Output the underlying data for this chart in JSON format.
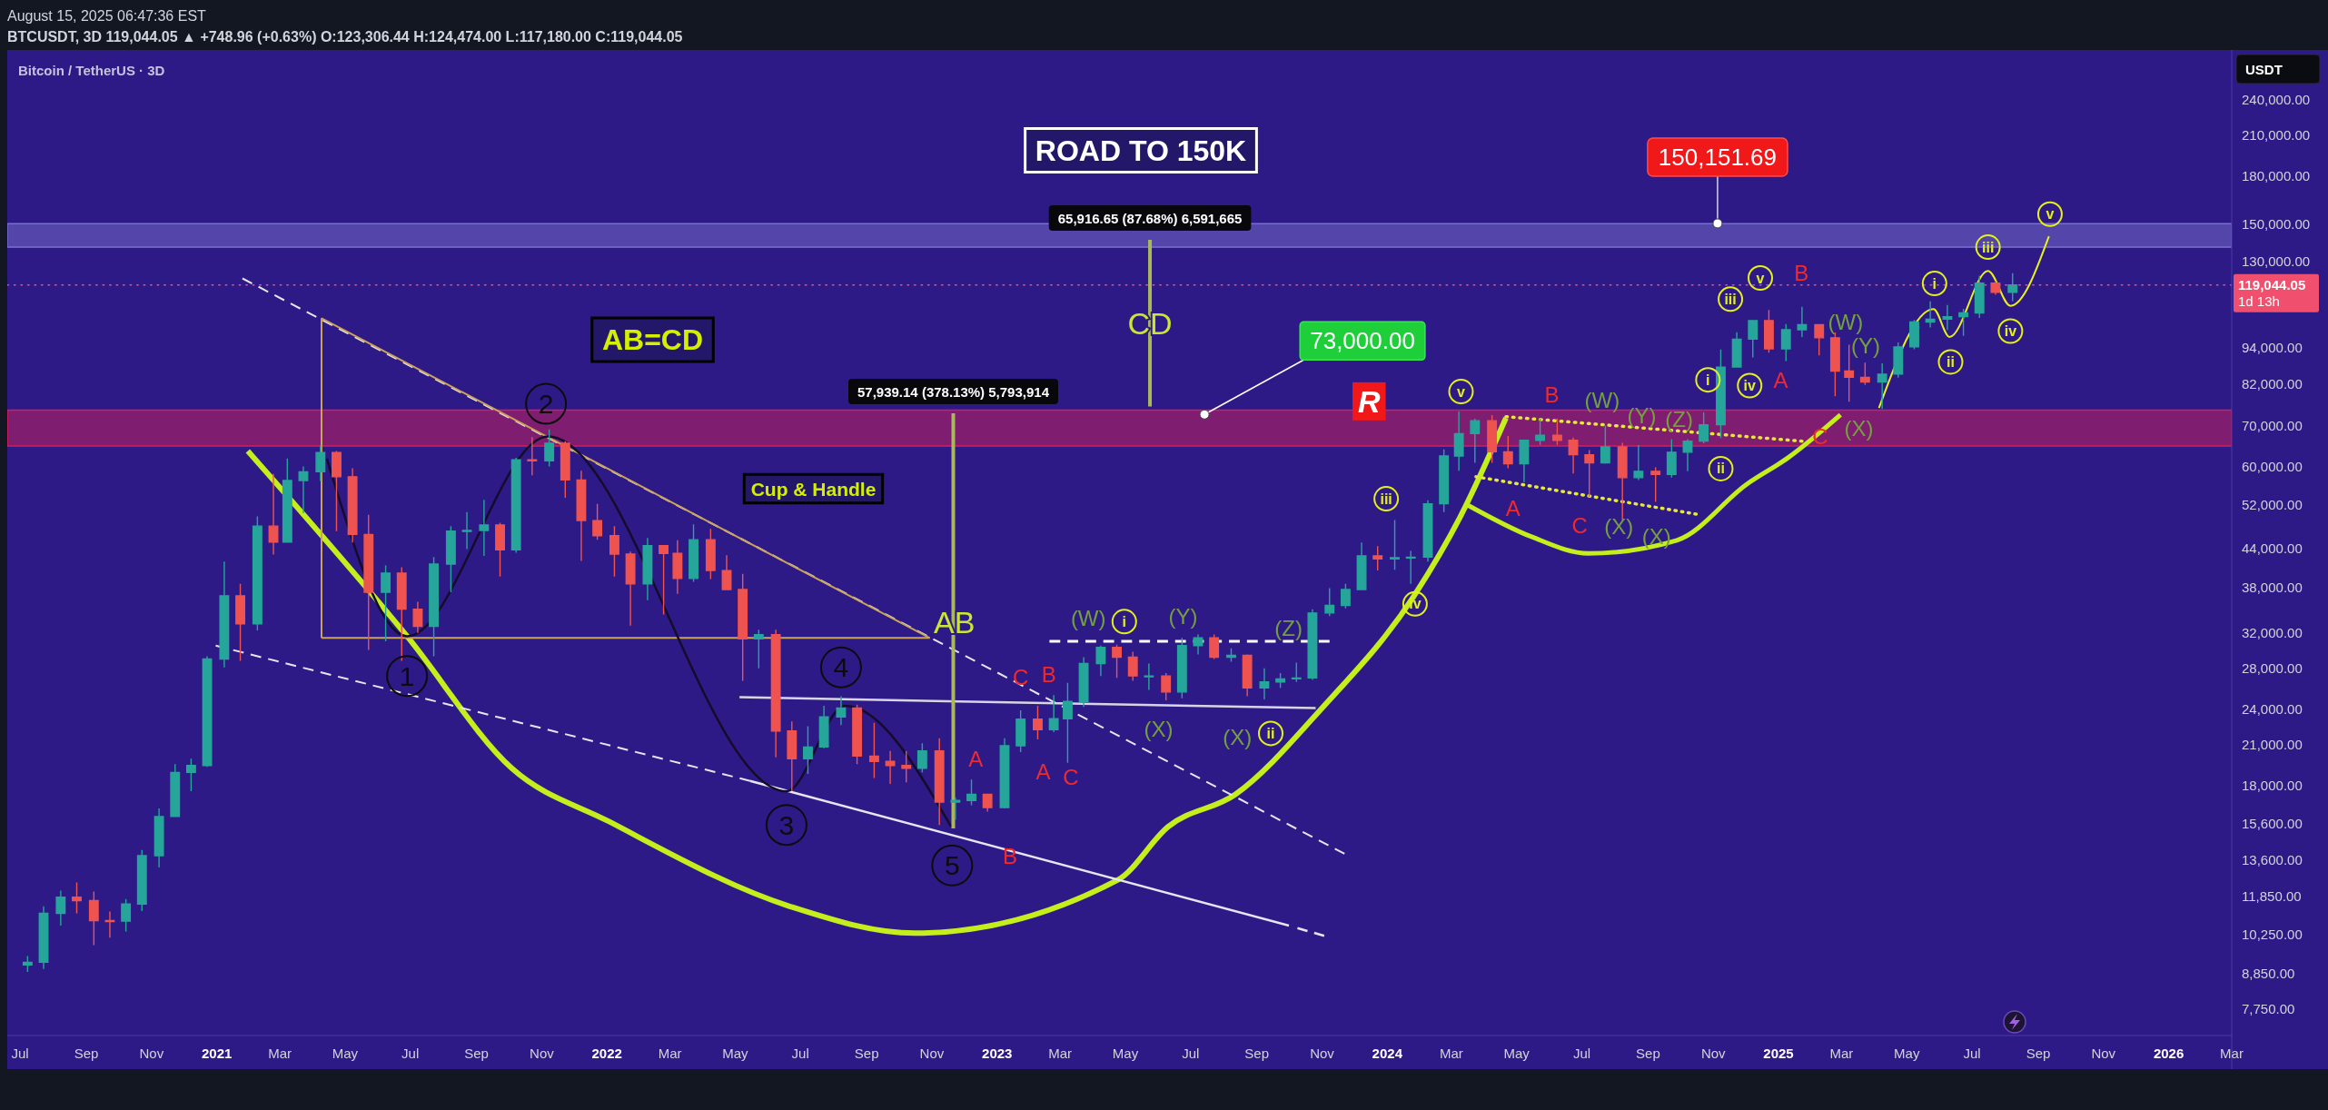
{
  "chart_data": {
    "type": "candlestick",
    "title": "Bitcoin / TetherUS · 3D",
    "ylabel": "USDT",
    "log": true,
    "xlim": [
      "2020-06-19",
      "2026-03-01"
    ],
    "ylim": [
      7000,
      289000
    ],
    "xticks": [
      {
        "value": "2020-07",
        "label": "Jul"
      },
      {
        "value": "2020-09",
        "label": "Sep"
      },
      {
        "value": "2020-11",
        "label": "Nov"
      },
      {
        "value": "2021-01",
        "label": "2021"
      },
      {
        "value": "2021-03",
        "label": "Mar"
      },
      {
        "value": "2021-05",
        "label": "May"
      },
      {
        "value": "2021-07",
        "label": "Jul"
      },
      {
        "value": "2021-09",
        "label": "Sep"
      },
      {
        "value": "2021-11",
        "label": "Nov"
      },
      {
        "value": "2022-01",
        "label": "2022"
      },
      {
        "value": "2022-03",
        "label": "Mar"
      },
      {
        "value": "2022-05",
        "label": "May"
      },
      {
        "value": "2022-07",
        "label": "Jul"
      },
      {
        "value": "2022-09",
        "label": "Sep"
      },
      {
        "value": "2022-11",
        "label": "Nov"
      },
      {
        "value": "2023-01",
        "label": "2023"
      },
      {
        "value": "2023-03",
        "label": "Mar"
      },
      {
        "value": "2023-05",
        "label": "May"
      },
      {
        "value": "2023-07",
        "label": "Jul"
      },
      {
        "value": "2023-09",
        "label": "Sep"
      },
      {
        "value": "2023-11",
        "label": "Nov"
      },
      {
        "value": "2024-01",
        "label": "2024"
      },
      {
        "value": "2024-03",
        "label": "Mar"
      },
      {
        "value": "2024-05",
        "label": "May"
      },
      {
        "value": "2024-07",
        "label": "Jul"
      },
      {
        "value": "2024-09",
        "label": "Sep"
      },
      {
        "value": "2024-11",
        "label": "Nov"
      },
      {
        "value": "2025-01",
        "label": "2025"
      },
      {
        "value": "2025-03",
        "label": "Mar"
      },
      {
        "value": "2025-05",
        "label": "May"
      },
      {
        "value": "2025-07",
        "label": "Jul"
      },
      {
        "value": "2025-09",
        "label": "Sep"
      },
      {
        "value": "2025-11",
        "label": "Nov"
      },
      {
        "value": "2026-01",
        "label": "2026"
      },
      {
        "value": "2026-03",
        "label": "Mar"
      }
    ],
    "yticks": [
      {
        "value": 240000,
        "label": "240,000.00"
      },
      {
        "value": 210000,
        "label": "210,000.00"
      },
      {
        "value": 180000,
        "label": "180,000.00"
      },
      {
        "value": 150000,
        "label": "150,000.00"
      },
      {
        "value": 130000,
        "label": "130,000.00"
      },
      {
        "value": 94000,
        "label": "94,000.00"
      },
      {
        "value": 82000,
        "label": "82,000.00"
      },
      {
        "value": 70000,
        "label": "70,000.00"
      },
      {
        "value": 60000,
        "label": "60,000.00"
      },
      {
        "value": 52000,
        "label": "52,000.00"
      },
      {
        "value": 44000,
        "label": "44,000.00"
      },
      {
        "value": 38000,
        "label": "38,000.00"
      },
      {
        "value": 32000,
        "label": "32,000.00"
      },
      {
        "value": 28000,
        "label": "28,000.00"
      },
      {
        "value": 24000,
        "label": "24,000.00"
      },
      {
        "value": 21000,
        "label": "21,000.00"
      },
      {
        "value": 18000,
        "label": "18,000.00"
      },
      {
        "value": 15600,
        "label": "15,600.00"
      },
      {
        "value": 13600,
        "label": "13,600.00"
      },
      {
        "value": 11850,
        "label": "11,850.00"
      },
      {
        "value": 10250,
        "label": "10,250.00"
      },
      {
        "value": 8850,
        "label": "8,850.00"
      },
      {
        "value": 7750,
        "label": "7,750.00"
      }
    ],
    "x": [
      "2020-07-08",
      "2020-07-23",
      "2020-08-08",
      "2020-08-23",
      "2020-09-08",
      "2020-09-23",
      "2020-10-08",
      "2020-10-23",
      "2020-11-08",
      "2020-11-23",
      "2020-12-08",
      "2020-12-23",
      "2021-01-08",
      "2021-01-23",
      "2021-02-08",
      "2021-02-23",
      "2021-03-08",
      "2021-03-23",
      "2021-04-08",
      "2021-04-23",
      "2021-05-08",
      "2021-05-23",
      "2021-06-08",
      "2021-06-23",
      "2021-07-08",
      "2021-07-23",
      "2021-08-08",
      "2021-08-23",
      "2021-09-08",
      "2021-09-23",
      "2021-10-08",
      "2021-10-23",
      "2021-11-08",
      "2021-11-23",
      "2021-12-08",
      "2021-12-23",
      "2022-01-08",
      "2022-01-23",
      "2022-02-08",
      "2022-02-23",
      "2022-03-08",
      "2022-03-23",
      "2022-04-08",
      "2022-04-23",
      "2022-05-08",
      "2022-05-23",
      "2022-06-08",
      "2022-06-23",
      "2022-07-08",
      "2022-07-23",
      "2022-08-08",
      "2022-08-23",
      "2022-09-08",
      "2022-09-23",
      "2022-10-08",
      "2022-10-23",
      "2022-11-08",
      "2022-11-23",
      "2022-12-08",
      "2022-12-23",
      "2023-01-08",
      "2023-01-23",
      "2023-02-08",
      "2023-02-23",
      "2023-03-08",
      "2023-03-23",
      "2023-04-08",
      "2023-04-23",
      "2023-05-08",
      "2023-05-23",
      "2023-06-08",
      "2023-06-23",
      "2023-07-08",
      "2023-07-23",
      "2023-08-08",
      "2023-08-23",
      "2023-09-08",
      "2023-09-23",
      "2023-10-08",
      "2023-10-23",
      "2023-11-08",
      "2023-11-23",
      "2023-12-08",
      "2023-12-23",
      "2024-01-08",
      "2024-01-23",
      "2024-02-08",
      "2024-02-23",
      "2024-03-08",
      "2024-03-23",
      "2024-04-08",
      "2024-04-23",
      "2024-05-08",
      "2024-05-23",
      "2024-06-08",
      "2024-06-23",
      "2024-07-08",
      "2024-07-23",
      "2024-08-08",
      "2024-08-23",
      "2024-09-08",
      "2024-09-23",
      "2024-10-08",
      "2024-10-23",
      "2024-11-08",
      "2024-11-23",
      "2024-12-08",
      "2024-12-23",
      "2025-01-08",
      "2025-01-23",
      "2025-02-08",
      "2025-02-23",
      "2025-03-08",
      "2025-03-23",
      "2025-04-08",
      "2025-04-23",
      "2025-05-08",
      "2025-05-23",
      "2025-06-08",
      "2025-06-23",
      "2025-07-08",
      "2025-07-23",
      "2025-08-08"
    ],
    "ohlc": [
      [
        9140,
        9450,
        8900,
        9230
      ],
      [
        9230,
        11400,
        9000,
        11100
      ],
      [
        11100,
        12100,
        10600,
        11800
      ],
      [
        11800,
        12480,
        11100,
        11650
      ],
      [
        11650,
        12050,
        9850,
        10800
      ],
      [
        10800,
        11180,
        10130,
        10780
      ],
      [
        10780,
        11720,
        10370,
        11500
      ],
      [
        11500,
        14100,
        11200,
        13800
      ],
      [
        13800,
        16500,
        13200,
        16000
      ],
      [
        16000,
        19500,
        16000,
        18900
      ],
      [
        18900,
        19900,
        17600,
        19400
      ],
      [
        19400,
        29300,
        19300,
        29000
      ],
      [
        29000,
        41900,
        28100,
        36800
      ],
      [
        36800,
        38500,
        28800,
        33100
      ],
      [
        33100,
        49700,
        32300,
        47900
      ],
      [
        47900,
        58300,
        43000,
        45100
      ],
      [
        45100,
        61800,
        45000,
        56900
      ],
      [
        56900,
        60000,
        50300,
        58800
      ],
      [
        58800,
        64900,
        56800,
        63200
      ],
      [
        63200,
        63600,
        47000,
        57700
      ],
      [
        57700,
        59600,
        45000,
        46400
      ],
      [
        46400,
        50000,
        30000,
        37300
      ],
      [
        37300,
        41300,
        31000,
        40100
      ],
      [
        40100,
        41000,
        28800,
        35000
      ],
      [
        35000,
        36000,
        32000,
        32800
      ],
      [
        32800,
        42600,
        29300,
        41500
      ],
      [
        41500,
        47900,
        37300,
        47000
      ],
      [
        47000,
        50500,
        43900,
        47100
      ],
      [
        47100,
        52900,
        42800,
        48100
      ],
      [
        48100,
        48500,
        39600,
        43800
      ],
      [
        43800,
        62000,
        43300,
        61500
      ],
      [
        61500,
        67000,
        58000,
        61300
      ],
      [
        61300,
        69000,
        60000,
        65500
      ],
      [
        65500,
        66000,
        53300,
        57000
      ],
      [
        57000,
        59000,
        42000,
        48900
      ],
      [
        48900,
        52100,
        45500,
        46200
      ],
      [
        46200,
        47900,
        39600,
        43100
      ],
      [
        43100,
        43500,
        32900,
        38500
      ],
      [
        38500,
        45800,
        36200,
        44500
      ],
      [
        44500,
        44600,
        34300,
        43200
      ],
      [
        43200,
        45400,
        37100,
        39300
      ],
      [
        39300,
        48200,
        38800,
        45500
      ],
      [
        45500,
        47400,
        39200,
        40500
      ],
      [
        40500,
        42900,
        37600,
        37700
      ],
      [
        37700,
        40000,
        26700,
        31300
      ],
      [
        31300,
        32400,
        28000,
        31800
      ],
      [
        31800,
        32400,
        20000,
        22100
      ],
      [
        22100,
        22900,
        17600,
        19900
      ],
      [
        19900,
        22500,
        18800,
        20800
      ],
      [
        20800,
        24300,
        20700,
        23300
      ],
      [
        23300,
        25200,
        22600,
        24100
      ],
      [
        24100,
        24400,
        19500,
        20100
      ],
      [
        20100,
        22800,
        18500,
        19700
      ],
      [
        19700,
        20500,
        18100,
        19400
      ],
      [
        19400,
        20500,
        18200,
        19200
      ],
      [
        19200,
        21100,
        18900,
        20500
      ],
      [
        20500,
        21500,
        15500,
        16900
      ],
      [
        16900,
        17200,
        15800,
        17000
      ],
      [
        17000,
        18400,
        16700,
        17400
      ],
      [
        17400,
        17400,
        16300,
        16550
      ],
      [
        16550,
        21500,
        16500,
        20900
      ],
      [
        20900,
        23900,
        20400,
        23100
      ],
      [
        23100,
        24300,
        21400,
        22200
      ],
      [
        22200,
        25300,
        22000,
        23150
      ],
      [
        23150,
        26500,
        19600,
        24700
      ],
      [
        24700,
        29200,
        24200,
        28500
      ],
      [
        28500,
        30500,
        27200,
        30300
      ],
      [
        30300,
        30600,
        27000,
        29200
      ],
      [
        29200,
        29800,
        26700,
        27200
      ],
      [
        27200,
        28500,
        25800,
        27200
      ],
      [
        27200,
        27500,
        24800,
        25600
      ],
      [
        25600,
        31400,
        25000,
        30500
      ],
      [
        30500,
        31800,
        29500,
        31400
      ],
      [
        31400,
        31800,
        29000,
        29200
      ],
      [
        29200,
        30200,
        28700,
        29400
      ],
      [
        29400,
        29500,
        25200,
        26000
      ],
      [
        26000,
        28000,
        24900,
        26600
      ],
      [
        26600,
        27500,
        26000,
        26900
      ],
      [
        26900,
        28600,
        26600,
        27000
      ],
      [
        27000,
        35000,
        26800,
        34500
      ],
      [
        34500,
        37900,
        34100,
        35500
      ],
      [
        35500,
        38500,
        35100,
        37700
      ],
      [
        37700,
        45000,
        37600,
        42800
      ],
      [
        42800,
        44400,
        40500,
        42300
      ],
      [
        42300,
        49000,
        40600,
        42500
      ],
      [
        42500,
        43600,
        38500,
        42600
      ],
      [
        42600,
        52800,
        41900,
        52100
      ],
      [
        52100,
        64000,
        50500,
        62400
      ],
      [
        62400,
        73800,
        59000,
        67900
      ],
      [
        67900,
        71800,
        60800,
        71300
      ],
      [
        71300,
        72800,
        60800,
        63400
      ],
      [
        63400,
        67300,
        59600,
        60600
      ],
      [
        60600,
        66400,
        56500,
        66200
      ],
      [
        66200,
        71900,
        65100,
        67500
      ],
      [
        67500,
        71900,
        65100,
        66200
      ],
      [
        66200,
        66900,
        58400,
        62700
      ],
      [
        62700,
        63800,
        53500,
        60800
      ],
      [
        60800,
        70000,
        60600,
        64600
      ],
      [
        64600,
        65600,
        49000,
        57500
      ],
      [
        57500,
        65000,
        57000,
        58900
      ],
      [
        58900,
        59800,
        52500,
        58200
      ],
      [
        58200,
        66500,
        57500,
        63300
      ],
      [
        63300,
        66500,
        58900,
        66000
      ],
      [
        66000,
        73600,
        65500,
        70200
      ],
      [
        70200,
        93300,
        66800,
        87300
      ],
      [
        87300,
        99600,
        87100,
        97000
      ],
      [
        97000,
        104100,
        90500,
        104000
      ],
      [
        104000,
        108300,
        92200,
        93500
      ],
      [
        93500,
        102700,
        89300,
        100500
      ],
      [
        100500,
        109600,
        97800,
        102400
      ],
      [
        102400,
        102500,
        91200,
        97500
      ],
      [
        97500,
        99500,
        78200,
        86000
      ],
      [
        86000,
        95000,
        76600,
        84000
      ],
      [
        84000,
        88800,
        81600,
        82500
      ],
      [
        82500,
        88500,
        74500,
        85000
      ],
      [
        85000,
        95800,
        83900,
        94200
      ],
      [
        94200,
        104300,
        93400,
        103500
      ],
      [
        103500,
        111900,
        101400,
        104600
      ],
      [
        104600,
        110400,
        100400,
        105600
      ],
      [
        105600,
        108800,
        98200,
        107100
      ],
      [
        107100,
        123200,
        105100,
        119800
      ],
      [
        119800,
        120900,
        114700,
        115800
      ],
      [
        115800,
        124474,
        112000,
        119044
      ]
    ],
    "colors": [
      "#26a69a",
      "#26a69a",
      "#26a69a",
      "#ef5350",
      "#ef5350",
      "#ef5350",
      "#26a69a",
      "#26a69a",
      "#26a69a",
      "#26a69a",
      "#26a69a",
      "#26a69a",
      "#26a69a",
      "#ef5350",
      "#26a69a",
      "#ef5350",
      "#26a69a",
      "#26a69a",
      "#26a69a",
      "#ef5350",
      "#ef5350",
      "#ef5350",
      "#26a69a",
      "#ef5350",
      "#ef5350",
      "#26a69a",
      "#26a69a",
      "#26a69a",
      "#26a69a",
      "#ef5350",
      "#26a69a",
      "#ef5350",
      "#26a69a",
      "#ef5350",
      "#ef5350",
      "#ef5350",
      "#ef5350",
      "#ef5350",
      "#26a69a",
      "#ef5350",
      "#ef5350",
      "#26a69a",
      "#ef5350",
      "#ef5350",
      "#ef5350",
      "#26a69a",
      "#ef5350",
      "#ef5350",
      "#26a69a",
      "#26a69a",
      "#26a69a",
      "#ef5350",
      "#ef5350",
      "#ef5350",
      "#ef5350",
      "#26a69a",
      "#ef5350",
      "#26a69a",
      "#26a69a",
      "#ef5350",
      "#26a69a",
      "#26a69a",
      "#ef5350",
      "#26a69a",
      "#26a69a",
      "#26a69a",
      "#26a69a",
      "#ef5350",
      "#ef5350",
      "#26a69a",
      "#ef5350",
      "#26a69a",
      "#26a69a",
      "#ef5350",
      "#26a69a",
      "#ef5350",
      "#26a69a",
      "#26a69a",
      "#26a69a",
      "#26a69a",
      "#26a69a",
      "#26a69a",
      "#26a69a",
      "#ef5350",
      "#26a69a",
      "#26a69a",
      "#26a69a",
      "#26a69a",
      "#26a69a",
      "#26a69a",
      "#ef5350",
      "#ef5350",
      "#26a69a",
      "#26a69a",
      "#ef5350",
      "#ef5350",
      "#ef5350",
      "#26a69a",
      "#ef5350",
      "#26a69a",
      "#ef5350",
      "#26a69a",
      "#26a69a",
      "#26a69a",
      "#26a69a",
      "#26a69a",
      "#26a69a",
      "#ef5350",
      "#26a69a",
      "#26a69a",
      "#ef5350",
      "#ef5350",
      "#ef5350",
      "#ef5350",
      "#26a69a",
      "#26a69a",
      "#26a69a",
      "#26a69a",
      "#26a69a",
      "#26a69a",
      "#26a69a",
      "#ef5350",
      "#26a69a"
    ],
    "series": [
      {
        "type": "line",
        "color": "#c5ef1c",
        "line_style": "solid",
        "x": [
          "2021-01-30",
          "2021-06-28",
          "2021-10-04",
          "2022-01-03",
          "2022-06-21",
          "2022-10-16",
          "2023-04-24",
          "2023-06-10",
          "2023-08-12",
          "2023-11-01",
          "2024-01-26",
          "2024-03-09",
          "2024-04-21"
        ],
        "values": [
          63600,
          31600,
          19200,
          15700,
          11400,
          10300,
          12600,
          15400,
          17400,
          24100,
          36800,
          49500,
          72000
        ]
      },
      {
        "type": "line",
        "color": "#c5ef1c",
        "line_style": "solid",
        "x": [
          "2024-03-15",
          "2024-05-15",
          "2024-07-07",
          "2024-09-28",
          "2024-12-03",
          "2025-01-10",
          "2025-02-28"
        ],
        "values": [
          52000,
          46000,
          43200,
          45400,
          56200,
          62000,
          72900
        ]
      },
      {
        "type": "line",
        "color": "#e6e6f0",
        "line_style": "dashed",
        "x": [
          "2021-01-25",
          "2023-11-22"
        ],
        "values": [
          122000,
          13900
        ]
      },
      {
        "type": "line",
        "color": "#e6e6f0",
        "line_style": "dashed",
        "x": [
          "2020-12-31",
          "2022-05-15"
        ],
        "values": [
          30500,
          18300
        ]
      },
      {
        "type": "line",
        "color": "#e6e6f0",
        "line_style": "solid",
        "x": [
          "2022-05-15",
          "2023-10-01"
        ],
        "values": [
          18300,
          10600
        ]
      },
      {
        "type": "line",
        "color": "#e6e6f0",
        "line_style": "dashed",
        "x": [
          "2023-10-09",
          "2023-11-03"
        ],
        "values": [
          10500,
          10200
        ]
      },
      {
        "type": "line",
        "color": "#d6d6e2",
        "line_style": "solid",
        "x": [
          "2022-05-05",
          "2023-10-26"
        ],
        "values": [
          25100,
          24100
        ]
      },
      {
        "type": "line",
        "color": "#ffffff",
        "line_style": "dashed",
        "x": [
          "2023-02-19",
          "2023-11-08"
        ],
        "values": [
          31000,
          31000
        ]
      },
      {
        "type": "line",
        "color": "#c9a45a",
        "line_style": "solid",
        "x": [
          "2021-04-09",
          "2022-10-30"
        ],
        "values": [
          105000,
          31400
        ]
      },
      {
        "type": "line",
        "color": "#c9a45a",
        "line_style": "solid",
        "x": [
          "2021-04-09",
          "2022-10-30"
        ],
        "values": [
          31400,
          31400
        ]
      },
      {
        "type": "line",
        "color": "#c9a45a",
        "line_style": "solid",
        "x": [
          "2021-04-09",
          "2021-04-09"
        ],
        "values": [
          31400,
          105000
        ]
      },
      {
        "type": "line",
        "color": "#140c2a",
        "line_style": "solid",
        "x": [
          "2021-04-14",
          "2021-06-28",
          "2021-11-07",
          "2022-06-18",
          "2022-08-12",
          "2022-11-19"
        ],
        "values": [
          61800,
          31600,
          67200,
          17600,
          24300,
          15400
        ]
      },
      {
        "type": "line",
        "color": "#e8e83a",
        "line_style": "dotted",
        "x": [
          "2024-04-21",
          "2025-01-23"
        ],
        "values": [
          72400,
          66000
        ]
      },
      {
        "type": "line",
        "color": "#e8e83a",
        "line_style": "dotted",
        "x": [
          "2024-03-24",
          "2024-10-16"
        ],
        "values": [
          57700,
          50100
        ]
      },
      {
        "type": "line",
        "color": "#e8f01e",
        "line_style": "solid",
        "x": [
          "2025-04-05",
          "2025-05-26",
          "2025-06-10",
          "2025-07-16",
          "2025-08-06",
          "2025-09-11"
        ],
        "values": [
          74800,
          108700,
          97800,
          125500,
          110000,
          143000
        ]
      },
      {
        "type": "line",
        "color": "#a9b85c",
        "line_style": "solid",
        "x": [
          "2022-11-21",
          "2022-11-21"
        ],
        "values": [
          15300,
          73300
        ]
      },
      {
        "type": "line",
        "color": "#a9b85c",
        "line_style": "solid",
        "x": [
          "2023-05-24",
          "2023-05-24"
        ],
        "values": [
          75200,
          141100
        ]
      }
    ],
    "bands": [
      {
        "axis": "y",
        "from": 64800,
        "to": 74200,
        "color": "#d0205a"
      },
      {
        "axis": "y",
        "from": 137300,
        "to": 150000,
        "color": "#7a70d0"
      }
    ],
    "ref_lines": [
      {
        "axis": "y",
        "value": 119044.05,
        "label": "119,044.05",
        "color": "#f0506e",
        "line_style": "dotted"
      }
    ],
    "annotations": [
      "August 15, 2025 06:47:36 EST",
      "BTCUSDT, 3D 119,044.05 ▲ +748.96 (+0.63%) O:123,306.44 H:124,474.00 L:117,180.00 C:119,044.05",
      "ROAD TO 150K",
      "AB=CD",
      "Cup & Handle",
      "1d 13h",
      {
        "text": "AB",
        "x": "2022-11-22",
        "y": 33300
      },
      {
        "text": "CD",
        "x": "2023-05-24",
        "y": 103000
      },
      {
        "text": "57,939.14 (378.13%) 5,793,914",
        "x": "2022-11-21",
        "y": 73300
      },
      {
        "text": "65,916.65 (87.68%) 6,591,665",
        "x": "2023-05-24",
        "y": 141100
      },
      {
        "text": "73,000.00",
        "x": "2023-07-14",
        "y": 73000
      },
      {
        "text": "150,151.69",
        "x": "2024-11-05",
        "y": 150151.69
      },
      {
        "text": "R",
        "x": "2023-12-15",
        "y": 76700
      },
      {
        "text": "1",
        "x": "2021-06-28",
        "y": 27200
      },
      {
        "text": "2",
        "x": "2021-11-05",
        "y": 76000
      },
      {
        "text": "3",
        "x": "2022-06-18",
        "y": 15500
      },
      {
        "text": "4",
        "x": "2022-08-08",
        "y": 28100
      },
      {
        "text": "5",
        "x": "2022-11-20",
        "y": 13300
      },
      "C",
      "B",
      "A",
      "A",
      "C",
      "B",
      "A",
      "B",
      "C",
      "B",
      "A",
      "C",
      "(W)",
      "(X)",
      "(Y)",
      "(Z)",
      "(X)",
      "(W)",
      "(Y)",
      "(Z)",
      "(X)",
      "(X)",
      "(W)",
      "(Y)",
      "(X)",
      {
        "text": "i",
        "x": "2023-04-30",
        "y": 33400
      },
      {
        "text": "ii",
        "x": "2023-09-14",
        "y": 21900
      },
      {
        "text": "iii",
        "x": "2023-12-31",
        "y": 53100
      },
      {
        "text": "iv",
        "x": "2024-01-27",
        "y": 35700
      },
      {
        "text": "v",
        "x": "2024-03-10",
        "y": 79600
      },
      {
        "text": "i",
        "x": "2024-10-27",
        "y": 83200
      },
      {
        "text": "ii",
        "x": "2024-11-08",
        "y": 59500
      },
      {
        "text": "iii",
        "x": "2024-11-17",
        "y": 112800
      },
      {
        "text": "iv",
        "x": "2024-12-05",
        "y": 81400
      },
      {
        "text": "v",
        "x": "2024-12-15",
        "y": 122200
      },
      {
        "text": "i",
        "x": "2025-05-27",
        "y": 119700
      },
      {
        "text": "ii",
        "x": "2025-06-11",
        "y": 89000
      },
      {
        "text": "iii",
        "x": "2025-07-16",
        "y": 137300
      },
      {
        "text": "iv",
        "x": "2025-08-06",
        "y": 100000
      },
      {
        "text": "v",
        "x": "2025-09-12",
        "y": 155500
      }
    ]
  }
}
